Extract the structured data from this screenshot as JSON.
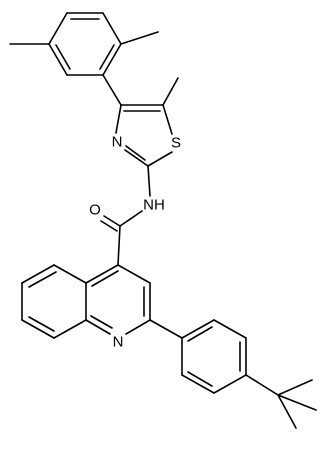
{
  "atom_labels": [
    "O",
    "NH",
    "N",
    "S",
    "N"
  ]
}
